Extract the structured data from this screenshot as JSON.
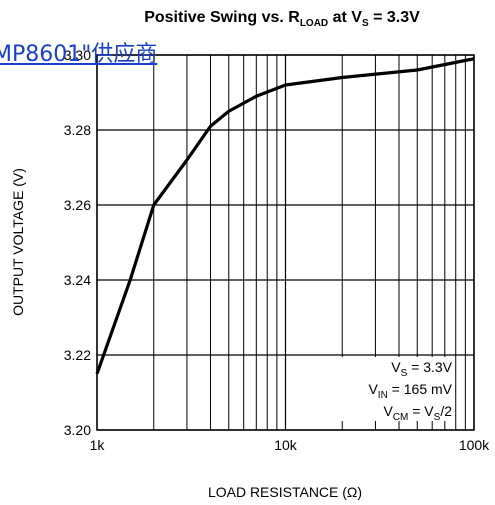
{
  "link": {
    "text": "MP8601\"供应商"
  },
  "chart_data": {
    "type": "line",
    "title": [
      "Positive Swing vs. R",
      "LOAD",
      " at V",
      "S",
      " = 3.3V"
    ],
    "xlabel": "LOAD RESISTANCE (Ω)",
    "ylabel": "OUTPUT VOLTAGE (V)",
    "x": [
      1000,
      1500,
      2000,
      3000,
      4000,
      5000,
      7000,
      10000,
      20000,
      50000,
      100000
    ],
    "series": [
      {
        "color": "#000000",
        "values": [
          3.215,
          3.24,
          3.26,
          3.272,
          3.281,
          3.285,
          3.289,
          3.292,
          3.294,
          3.296,
          3.299
        ]
      }
    ],
    "xlim": [
      1000,
      100000
    ],
    "xscale": "log",
    "xticks": [
      {
        "value": 1000,
        "label": "1k"
      },
      {
        "value": 10000,
        "label": "10k"
      },
      {
        "value": 100000,
        "label": "100k"
      }
    ],
    "ylim": [
      3.2,
      3.3
    ],
    "yticks": [
      {
        "value": 3.2,
        "label": "3.20"
      },
      3.22,
      3.24,
      3.26,
      3.28,
      {
        "value": 3.3,
        "label": "3.30"
      }
    ],
    "grid": true,
    "minor_grid": true,
    "annotations": [
      [
        "V",
        "S",
        " = 3.3V"
      ],
      [
        "V",
        "IN",
        " = 165 mV"
      ],
      [
        "V",
        "CM",
        " = V",
        "S",
        "/2"
      ]
    ]
  }
}
